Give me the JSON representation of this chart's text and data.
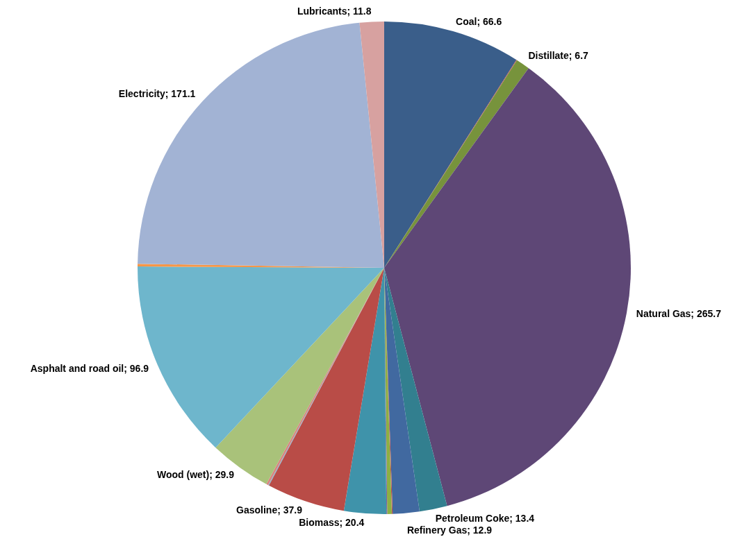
{
  "chart_data": {
    "type": "pie",
    "categories": [
      "Coal",
      null,
      "Distillate",
      "Natural Gas",
      "Petroleum Coke",
      "Refinery Gas",
      null,
      null,
      null,
      "Biomass",
      "Gasoline",
      null,
      null,
      "Wood (wet)",
      "Asphalt and road oil",
      null,
      "Electricity",
      "Lubricants"
    ],
    "values": [
      66.6,
      0.3,
      6.7,
      265.7,
      13.4,
      12.9,
      0.4,
      2.2,
      0.4,
      20.4,
      37.9,
      0.4,
      1.0,
      29.9,
      96.9,
      1.3,
      171.1,
      11.8
    ],
    "colors": [
      "#3a5e8a",
      "#c0504d",
      "#77933c",
      "#5e4776",
      "#327f8f",
      "#4169a0",
      "#c0504d",
      "#8db043",
      "#8064a2",
      "#3f93aa",
      "#b94c47",
      "#7fb3d0",
      "#d98580",
      "#a9c27a",
      "#6eb6cc",
      "#f79646",
      "#a2b3d4",
      "#d7a1a0"
    ],
    "value_labels": [
      "66.6",
      null,
      "6.7",
      "265.7",
      "13.4",
      "12.9",
      null,
      null,
      null,
      "20.4",
      "37.9",
      null,
      null,
      "29.9",
      "96.9",
      null,
      "171.1",
      "11.8"
    ]
  }
}
